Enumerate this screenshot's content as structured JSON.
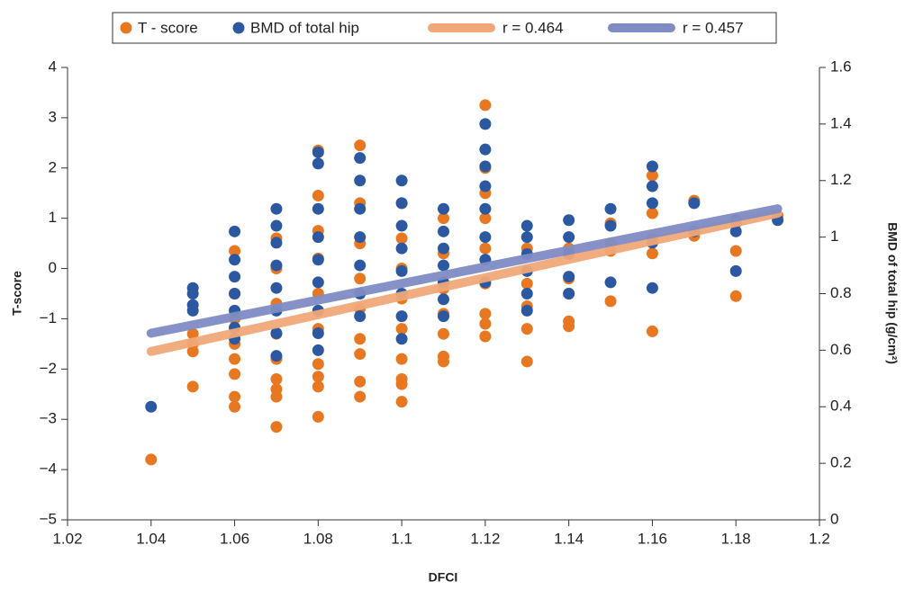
{
  "chart_data": {
    "type": "scatter",
    "xlabel": "DFCI",
    "ylabel": "T-score",
    "y2label": "BMD of total hip (g/cm²)",
    "xlim": [
      1.02,
      1.2
    ],
    "xticks": [
      1.02,
      1.04,
      1.06,
      1.08,
      1.1,
      1.12,
      1.14,
      1.16,
      1.18,
      1.2
    ],
    "ylim": [
      -5,
      4
    ],
    "yticks": [
      {
        "value": -5,
        "label": "−5"
      },
      {
        "value": -4,
        "label": "−4"
      },
      {
        "value": -3,
        "label": "−3"
      },
      {
        "value": -2,
        "label": "−2"
      },
      {
        "value": -1,
        "label": "−1"
      },
      0,
      1,
      2,
      3,
      4
    ],
    "y2lim": [
      0,
      1.6
    ],
    "y2ticks": [
      0,
      0.2,
      0.4,
      0.6,
      0.8,
      1,
      1.2,
      1.4,
      1.6
    ],
    "series": [
      {
        "name": "T - score",
        "type": "scatter",
        "color": "#e87722",
        "x": [
          1.04,
          1.05,
          1.05,
          1.05,
          1.05,
          1.06,
          1.06,
          1.06,
          1.06,
          1.06,
          1.06,
          1.06,
          1.06,
          1.07,
          1.07,
          1.07,
          1.07,
          1.07,
          1.07,
          1.07,
          1.07,
          1.07,
          1.08,
          1.08,
          1.08,
          1.08,
          1.08,
          1.08,
          1.08,
          1.08,
          1.08,
          1.08,
          1.09,
          1.09,
          1.09,
          1.09,
          1.09,
          1.09,
          1.09,
          1.09,
          1.09,
          1.1,
          1.1,
          1.1,
          1.1,
          1.1,
          1.1,
          1.1,
          1.1,
          1.1,
          1.11,
          1.11,
          1.11,
          1.11,
          1.11,
          1.11,
          1.11,
          1.12,
          1.12,
          1.12,
          1.12,
          1.12,
          1.12,
          1.12,
          1.12,
          1.12,
          1.13,
          1.13,
          1.13,
          1.13,
          1.13,
          1.14,
          1.14,
          1.14,
          1.14,
          1.14,
          1.15,
          1.15,
          1.15,
          1.15,
          1.16,
          1.16,
          1.16,
          1.16,
          1.16,
          1.17,
          1.17,
          1.18,
          1.18,
          1.18,
          1.19
        ],
        "values": [
          -3.8,
          -1.3,
          -1.5,
          -1.65,
          -2.35,
          0.35,
          -0.5,
          -1,
          -1.5,
          -1.8,
          -2.1,
          -2.55,
          -2.75,
          0.6,
          0,
          -0.7,
          -1.3,
          -1.8,
          -2.2,
          -2.4,
          -2.55,
          -3.15,
          2.35,
          1.45,
          0.75,
          0.2,
          -0.5,
          -1.2,
          -1.9,
          -2.15,
          -2.35,
          -2.95,
          2.45,
          1.3,
          0.5,
          -0.2,
          -0.8,
          -1.4,
          -1.7,
          -2.25,
          -2.55,
          1.3,
          0.6,
          0,
          -0.6,
          -1.2,
          -1.8,
          -2.2,
          -2.3,
          -2.65,
          1,
          0.3,
          -0.4,
          -0.9,
          -1.3,
          -1.75,
          -1.85,
          3.25,
          2,
          1.5,
          1,
          0.4,
          -0.3,
          -0.9,
          -1.1,
          -1.35,
          0.4,
          -0.3,
          -0.75,
          -1.2,
          -1.85,
          0.4,
          -0.2,
          -0.5,
          -1.05,
          -1.15,
          0.9,
          0.5,
          0.35,
          -0.65,
          1.85,
          1.1,
          0.6,
          0.3,
          -1.25,
          1.35,
          0.65,
          0.9,
          0.35,
          -0.55,
          1.05
        ]
      },
      {
        "name": "BMD of total hip",
        "type": "scatter",
        "color": "#2b58a0",
        "axis": "y2",
        "x": [
          1.04,
          1.05,
          1.05,
          1.05,
          1.05,
          1.06,
          1.06,
          1.06,
          1.06,
          1.06,
          1.06,
          1.06,
          1.07,
          1.07,
          1.07,
          1.07,
          1.07,
          1.07,
          1.07,
          1.07,
          1.08,
          1.08,
          1.08,
          1.08,
          1.08,
          1.08,
          1.08,
          1.08,
          1.08,
          1.09,
          1.09,
          1.09,
          1.09,
          1.09,
          1.09,
          1.09,
          1.1,
          1.1,
          1.1,
          1.1,
          1.1,
          1.1,
          1.1,
          1.1,
          1.11,
          1.11,
          1.11,
          1.11,
          1.11,
          1.11,
          1.11,
          1.12,
          1.12,
          1.12,
          1.12,
          1.12,
          1.12,
          1.12,
          1.12,
          1.13,
          1.13,
          1.13,
          1.13,
          1.13,
          1.13,
          1.14,
          1.14,
          1.14,
          1.14,
          1.14,
          1.15,
          1.15,
          1.15,
          1.16,
          1.16,
          1.16,
          1.16,
          1.16,
          1.17,
          1.17,
          1.18,
          1.18,
          1.18,
          1.19
        ],
        "values": [
          0.4,
          0.82,
          0.8,
          0.76,
          0.74,
          1.02,
          0.92,
          0.86,
          0.8,
          0.74,
          0.68,
          0.64,
          1.1,
          1.04,
          0.98,
          0.9,
          0.82,
          0.74,
          0.66,
          0.58,
          1.3,
          1.26,
          1.1,
          1,
          0.92,
          0.84,
          0.74,
          0.66,
          0.6,
          1.28,
          1.2,
          1.1,
          1,
          0.9,
          0.8,
          0.72,
          1.2,
          1.12,
          1.04,
          0.96,
          0.88,
          0.8,
          0.72,
          0.64,
          1.1,
          1.02,
          0.96,
          0.9,
          0.84,
          0.78,
          0.72,
          1.4,
          1.31,
          1.25,
          1.18,
          1.1,
          1,
          0.92,
          0.84,
          1.04,
          1,
          0.94,
          0.88,
          0.8,
          0.74,
          1.06,
          1,
          0.94,
          0.86,
          0.8,
          1.1,
          1.04,
          0.84,
          1.25,
          1.18,
          1.12,
          0.98,
          0.82,
          1.12,
          1.02,
          1.06,
          1.02,
          0.88,
          1.06
        ]
      },
      {
        "name": "r = 0.464",
        "type": "line",
        "color": "#f0a878",
        "x": [
          1.04,
          1.19
        ],
        "values": [
          -1.65,
          1.1
        ]
      },
      {
        "name": "r = 0.457",
        "type": "line",
        "color": "#7f8cc4",
        "axis": "y2",
        "x": [
          1.04,
          1.19
        ],
        "values": [
          0.66,
          1.1
        ]
      }
    ]
  }
}
